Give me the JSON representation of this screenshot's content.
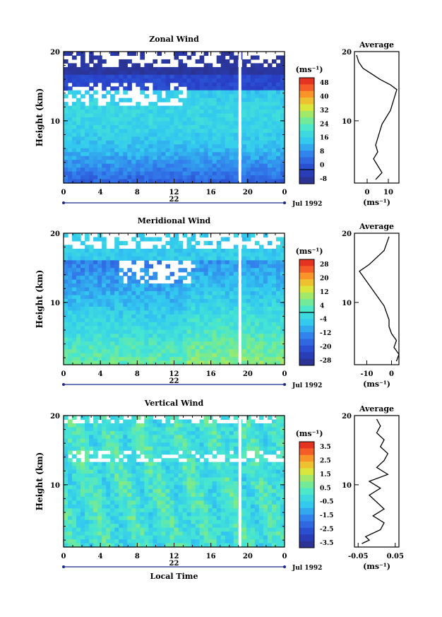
{
  "chart_data": [
    {
      "type": "heatmap",
      "title": "Zonal Wind",
      "ylabel": "Height (km)",
      "y_ticks": [
        "10",
        "20"
      ],
      "ylim": [
        1,
        20
      ],
      "x_ticks": [
        "0",
        "4",
        "8",
        "12",
        "16",
        "20",
        "0"
      ],
      "xlim": [
        0,
        24
      ],
      "date_marks": [
        "22"
      ],
      "date_label": "Jul 1992",
      "colorbar": {
        "unit": "(ms⁻¹)",
        "levels": [
          "48",
          "40",
          "32",
          "24",
          "16",
          "8",
          "0",
          "-8"
        ],
        "range": [
          -8,
          52
        ],
        "zero_line": 0
      },
      "average": {
        "title": "Average",
        "unit": "(ms⁻¹)",
        "x_ticks": [
          "0",
          "10"
        ],
        "xlim": [
          -6,
          15
        ],
        "y_ticks": [
          "10",
          "20"
        ],
        "profile": [
          [
            4,
            1.5
          ],
          [
            7,
            2.5
          ],
          [
            5,
            3.5
          ],
          [
            3,
            4.5
          ],
          [
            5,
            5.5
          ],
          [
            4,
            6.5
          ],
          [
            5,
            7.5
          ],
          [
            6,
            8.5
          ],
          [
            7,
            9.5
          ],
          [
            9,
            10.5
          ],
          [
            11,
            11.5
          ],
          [
            12,
            12.5
          ],
          [
            13,
            13.5
          ],
          [
            14,
            14.5
          ],
          [
            11,
            15.2
          ],
          [
            6,
            16.0
          ],
          [
            2,
            16.8
          ],
          [
            -2,
            17.6
          ],
          [
            -4,
            18.5
          ],
          [
            -5,
            19.5
          ]
        ]
      }
    },
    {
      "type": "heatmap",
      "title": "Meridional Wind",
      "ylabel": "Height (km)",
      "y_ticks": [
        "10",
        "20"
      ],
      "ylim": [
        1,
        20
      ],
      "x_ticks": [
        "0",
        "4",
        "8",
        "12",
        "16",
        "20",
        "0"
      ],
      "xlim": [
        0,
        24
      ],
      "date_marks": [
        "22"
      ],
      "date_label": "Jul 1992",
      "colorbar": {
        "unit": "(ms⁻¹)",
        "levels": [
          "28",
          "20",
          "12",
          "4",
          "-4",
          "-12",
          "-20",
          "-28"
        ],
        "range": [
          -32,
          32
        ],
        "zero_line": 0
      },
      "average": {
        "title": "Average",
        "unit": "(ms⁻¹)",
        "x_ticks": [
          "-10",
          "0"
        ],
        "xlim": [
          -15,
          3
        ],
        "y_ticks": [
          "10",
          "20"
        ],
        "profile": [
          [
            2,
            1.5
          ],
          [
            3,
            2.5
          ],
          [
            1,
            3.5
          ],
          [
            2,
            4.5
          ],
          [
            0,
            5.5
          ],
          [
            -1,
            6.5
          ],
          [
            -1,
            7.5
          ],
          [
            -2,
            8.5
          ],
          [
            -3,
            9.5
          ],
          [
            -5,
            10.5
          ],
          [
            -7,
            11.5
          ],
          [
            -9,
            12.5
          ],
          [
            -11,
            13.5
          ],
          [
            -13,
            14.5
          ],
          [
            -9,
            15.5
          ],
          [
            -6,
            16.5
          ],
          [
            -3,
            17.5
          ],
          [
            -2,
            18.5
          ],
          [
            -1,
            19.5
          ]
        ]
      }
    },
    {
      "type": "heatmap",
      "title": "Vertical Wind",
      "ylabel": "Height (km)",
      "xlabel": "Local Time",
      "y_ticks": [
        "10",
        "20"
      ],
      "ylim": [
        1,
        20
      ],
      "x_ticks": [
        "0",
        "4",
        "8",
        "12",
        "16",
        "20",
        "0"
      ],
      "xlim": [
        0,
        24
      ],
      "date_marks": [
        "22"
      ],
      "date_label": "Jul 1992",
      "colorbar": {
        "unit": "(ms⁻¹)",
        "levels": [
          "3.5",
          "2.5",
          "1.5",
          "0.5",
          "-0.5",
          "-1.5",
          "-2.5",
          "-3.5"
        ],
        "range": [
          -4,
          4
        ],
        "zero_line": null
      },
      "average": {
        "title": "Average",
        "unit": "(ms⁻¹)",
        "x_ticks": [
          "-0.05",
          "0.05"
        ],
        "xlim": [
          -0.06,
          0.06
        ],
        "y_ticks": [
          "10",
          "20"
        ],
        "profile": [
          [
            -0.04,
            1.5
          ],
          [
            -0.02,
            2.0
          ],
          [
            -0.03,
            2.5
          ],
          [
            0.01,
            3.5
          ],
          [
            0.02,
            4.5
          ],
          [
            -0.01,
            5.5
          ],
          [
            0.02,
            6.5
          ],
          [
            0.0,
            7.5
          ],
          [
            -0.02,
            8.5
          ],
          [
            0.01,
            9.5
          ],
          [
            -0.02,
            10.5
          ],
          [
            0.03,
            11.5
          ],
          [
            0.0,
            12.5
          ],
          [
            0.02,
            13.5
          ],
          [
            0.03,
            14.5
          ],
          [
            0.01,
            15.5
          ],
          [
            0.02,
            16.5
          ],
          [
            0.0,
            17.5
          ],
          [
            0.01,
            18.5
          ],
          [
            0.0,
            19.5
          ]
        ]
      }
    }
  ]
}
